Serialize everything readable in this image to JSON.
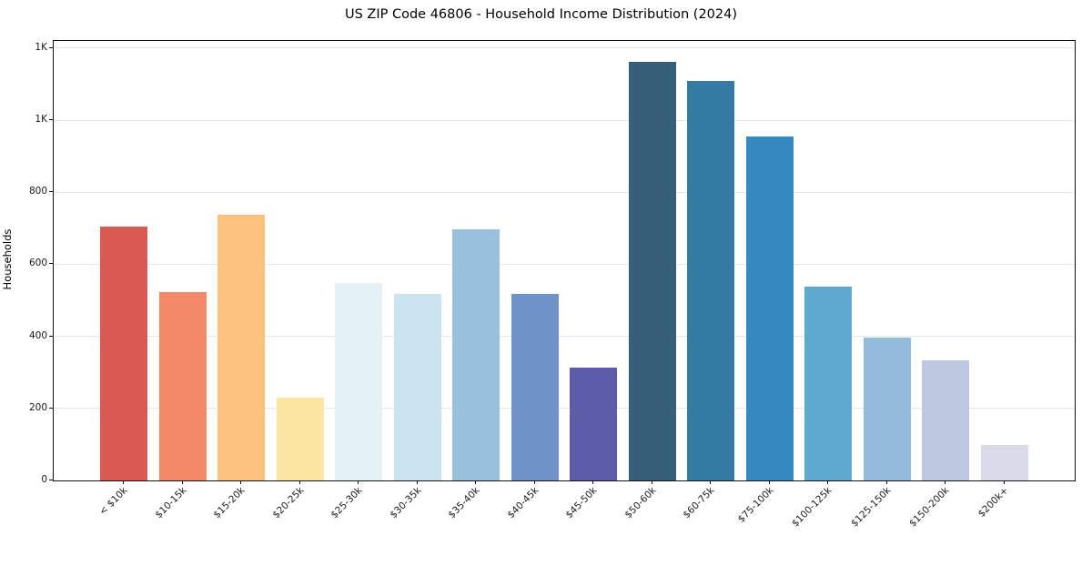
{
  "chart_data": {
    "type": "bar",
    "title": "US ZIP Code 46806 - Household Income Distribution (2024)",
    "xlabel": "",
    "ylabel": "Households",
    "categories": [
      "< $10k",
      "$10-15k",
      "$15-20k",
      "$20-25k",
      "$25-30k",
      "$30-35k",
      "$35-40k",
      "$40-45k",
      "$45-50k",
      "$50-60k",
      "$60-75k",
      "$75-100k",
      "$100-125k",
      "$125-150k",
      "$150-200k",
      "$200k+"
    ],
    "values": [
      706,
      524,
      737,
      231,
      548,
      517,
      696,
      519,
      314,
      1162,
      1110,
      955,
      539,
      396,
      333,
      98
    ],
    "bar_colors": [
      "#d85a53",
      "#f28a68",
      "#fbc27f",
      "#fce6a4",
      "#e4f1f5",
      "#cce4f0",
      "#99c1dd",
      "#6f93c8",
      "#5c5caa",
      "#36607a",
      "#347ba4",
      "#3789c1",
      "#5fa8ce",
      "#92bcda",
      "#bcc9e0",
      "#d9dbe8"
    ],
    "ylim": [
      0,
      1220
    ],
    "yticks": [
      {
        "value": 0,
        "label": "0"
      },
      {
        "value": 200,
        "label": "200"
      },
      {
        "value": 400,
        "label": "400"
      },
      {
        "value": 600,
        "label": "600"
      },
      {
        "value": 800,
        "label": "800"
      },
      {
        "value": 1000,
        "label": "1K"
      },
      {
        "value": 1200,
        "label": "1K"
      }
    ],
    "grid": "horizontal-only",
    "legend": "none",
    "x_tick_rotation": 45
  }
}
